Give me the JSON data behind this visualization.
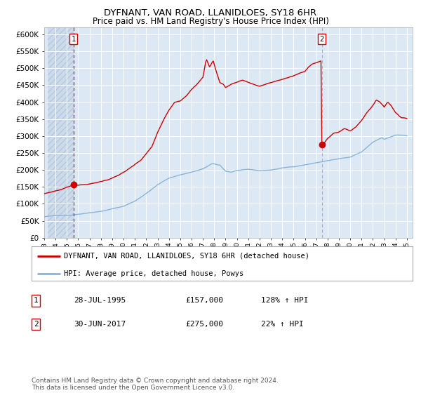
{
  "title": "DYFNANT, VAN ROAD, LLANIDLOES, SY18 6HR",
  "subtitle": "Price paid vs. HM Land Registry's House Price Index (HPI)",
  "ylim": [
    0,
    620000
  ],
  "xlim_start": 1993.3,
  "xlim_end": 2025.5,
  "yticks": [
    0,
    50000,
    100000,
    150000,
    200000,
    250000,
    300000,
    350000,
    400000,
    450000,
    500000,
    550000,
    600000
  ],
  "ytick_labels": [
    "£0",
    "£50K",
    "£100K",
    "£150K",
    "£200K",
    "£250K",
    "£300K",
    "£350K",
    "£400K",
    "£450K",
    "£500K",
    "£550K",
    "£600K"
  ],
  "xtick_years": [
    1993,
    1994,
    1995,
    1996,
    1997,
    1998,
    1999,
    2000,
    2001,
    2002,
    2003,
    2004,
    2005,
    2006,
    2007,
    2008,
    2009,
    2010,
    2011,
    2012,
    2013,
    2014,
    2015,
    2016,
    2017,
    2018,
    2019,
    2020,
    2021,
    2022,
    2023,
    2024,
    2025
  ],
  "sale1_x": 1995.57,
  "sale1_y": 157000,
  "sale1_label": "1",
  "sale1_date": "28-JUL-1995",
  "sale1_price": "£157,000",
  "sale1_hpi": "128% ↑ HPI",
  "sale2_x": 2017.5,
  "sale2_y": 275000,
  "sale2_label": "2",
  "sale2_date": "30-JUN-2017",
  "sale2_price": "£275,000",
  "sale2_hpi": "22% ↑ HPI",
  "hpi_line_color": "#8ab4d8",
  "price_line_color": "#cc0000",
  "dot_color": "#cc0000",
  "vline1_color": "#cc0000",
  "vline2_color": "#aaaacc",
  "bg_color": "#dce9f5",
  "grid_color": "#ffffff",
  "legend_line1": "DYFNANT, VAN ROAD, LLANIDLOES, SY18 6HR (detached house)",
  "legend_line2": "HPI: Average price, detached house, Powys",
  "footer": "Contains HM Land Registry data © Crown copyright and database right 2024.\nThis data is licensed under the Open Government Licence v3.0."
}
